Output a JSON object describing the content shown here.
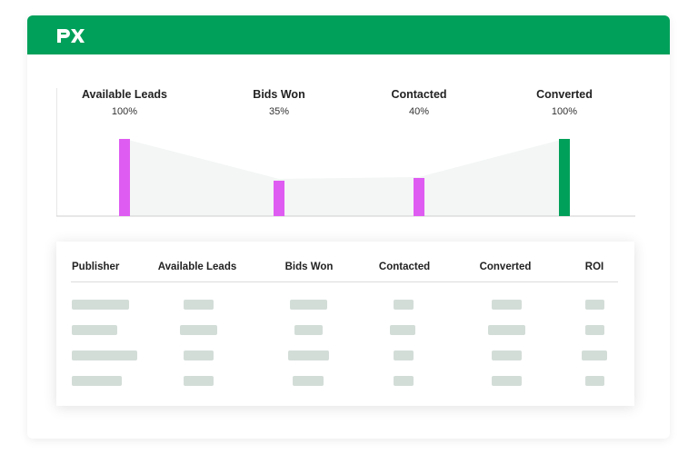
{
  "brand": {
    "logo_text": "px",
    "header_color": "#00a05a"
  },
  "funnel": {
    "stages": [
      {
        "label": "Available Leads",
        "percent": "100%",
        "bar_color": "#de5cf1"
      },
      {
        "label": "Bids Won",
        "percent": "35%",
        "bar_color": "#de5cf1"
      },
      {
        "label": "Contacted",
        "percent": "40%",
        "bar_color": "#de5cf1"
      },
      {
        "label": "Converted",
        "percent": "100%",
        "bar_color": "#00a05a"
      }
    ]
  },
  "table": {
    "columns": [
      "Publisher",
      "Available Leads",
      "Bids Won",
      "Contacted",
      "Converted",
      "ROI"
    ],
    "placeholder_color": "#d3ddd8",
    "row_count": 4
  }
}
